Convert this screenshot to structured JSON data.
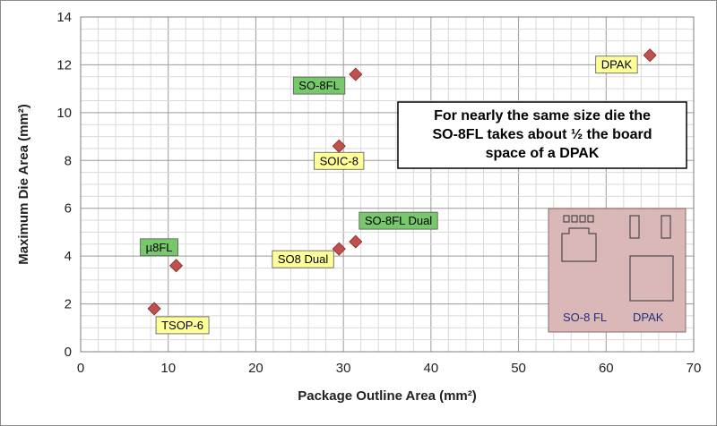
{
  "chart_data": {
    "type": "scatter",
    "title": "",
    "xlabel": "Package Outline Area (mm²)",
    "ylabel": "Maximum Die Area (mm²)",
    "xlim": [
      0,
      70
    ],
    "ylim": [
      0,
      14
    ],
    "x_ticks": [
      0,
      10,
      20,
      30,
      40,
      50,
      60,
      70
    ],
    "y_ticks": [
      0,
      2,
      4,
      6,
      8,
      10,
      12,
      14
    ],
    "grid": true,
    "marker": "diamond",
    "marker_color": "#c0504d",
    "points": [
      {
        "label": "TSOP-6",
        "x": 8.4,
        "y": 1.8,
        "label_color": "#ffff99",
        "label_position": "below-right"
      },
      {
        "label": "µ8FL",
        "x": 10.9,
        "y": 3.6,
        "label_color": "#77c86a",
        "label_position": "above-left"
      },
      {
        "label": "SO8 Dual",
        "x": 29.5,
        "y": 4.3,
        "label_color": "#ffff99",
        "label_position": "below-left"
      },
      {
        "label": "SO-8FL Dual",
        "x": 31.4,
        "y": 4.6,
        "label_color": "#77c86a",
        "label_position": "above-right"
      },
      {
        "label": "SOIC-8",
        "x": 29.5,
        "y": 8.6,
        "label_color": "#ffff99",
        "label_position": "below"
      },
      {
        "label": "SO-8FL",
        "x": 31.4,
        "y": 11.6,
        "label_color": "#77c86a",
        "label_position": "below-left"
      },
      {
        "label": "DPAK",
        "x": 65.0,
        "y": 12.4,
        "label_color": "#ffff99",
        "label_position": "below-left"
      }
    ],
    "annotations": [
      {
        "lines": [
          "For nearly the same size die the",
          "SO-8FL takes about ½ the board",
          "space of a DPAK"
        ]
      }
    ],
    "inset": {
      "labels": [
        "SO-8 FL",
        "DPAK"
      ],
      "background": "#dbb8b8"
    }
  }
}
